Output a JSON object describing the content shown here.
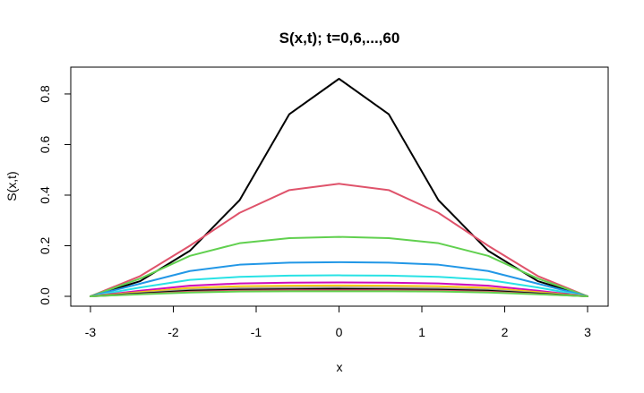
{
  "chart_data": {
    "type": "line",
    "title": "S(x,t); t=0,6,...,60",
    "xlabel": "x",
    "ylabel": "S(x,t)",
    "xlim": [
      -3.0,
      3.0
    ],
    "ylim": [
      0.0,
      0.86
    ],
    "x_ticks": [
      "-3",
      "-2",
      "-1",
      "0",
      "1",
      "2",
      "3"
    ],
    "y_ticks": [
      "0.0",
      "0.2",
      "0.4",
      "0.6",
      "0.8"
    ],
    "grid": false,
    "x": [
      -3.0,
      -2.4,
      -1.8,
      -1.2,
      -0.6,
      0.0,
      0.6,
      1.2,
      1.8,
      2.4,
      3.0
    ],
    "series": [
      {
        "color": "#000000",
        "values": [
          0.0,
          0.06,
          0.18,
          0.38,
          0.72,
          0.86,
          0.72,
          0.38,
          0.18,
          0.06,
          0.0
        ]
      },
      {
        "color": "#DF536B",
        "values": [
          0.0,
          0.08,
          0.2,
          0.33,
          0.42,
          0.445,
          0.42,
          0.33,
          0.2,
          0.08,
          0.0
        ]
      },
      {
        "color": "#61D04F",
        "values": [
          0.0,
          0.07,
          0.16,
          0.21,
          0.23,
          0.235,
          0.23,
          0.21,
          0.16,
          0.07,
          0.0
        ]
      },
      {
        "color": "#2297E6",
        "values": [
          0.0,
          0.05,
          0.1,
          0.125,
          0.133,
          0.135,
          0.133,
          0.125,
          0.1,
          0.05,
          0.0
        ]
      },
      {
        "color": "#28E2E5",
        "values": [
          0.0,
          0.035,
          0.065,
          0.077,
          0.082,
          0.083,
          0.082,
          0.077,
          0.065,
          0.035,
          0.0
        ]
      },
      {
        "color": "#CD0BBC",
        "values": [
          0.0,
          0.022,
          0.042,
          0.051,
          0.054,
          0.055,
          0.054,
          0.051,
          0.042,
          0.022,
          0.0
        ]
      },
      {
        "color": "#F5C710",
        "values": [
          0.0,
          0.017,
          0.033,
          0.04,
          0.042,
          0.043,
          0.042,
          0.04,
          0.033,
          0.017,
          0.0
        ]
      },
      {
        "color": "#9E9E9E",
        "values": [
          0.0,
          0.013,
          0.026,
          0.032,
          0.034,
          0.035,
          0.034,
          0.032,
          0.026,
          0.013,
          0.0
        ]
      },
      {
        "color": "#000000",
        "values": [
          0.0,
          0.011,
          0.022,
          0.026,
          0.028,
          0.029,
          0.028,
          0.026,
          0.022,
          0.011,
          0.0
        ]
      },
      {
        "color": "#DF536B",
        "values": [
          0.0,
          0.009,
          0.018,
          0.022,
          0.024,
          0.024,
          0.024,
          0.022,
          0.018,
          0.009,
          0.0
        ]
      },
      {
        "color": "#61D04F",
        "values": [
          0.0,
          0.008,
          0.015,
          0.019,
          0.02,
          0.02,
          0.02,
          0.019,
          0.015,
          0.008,
          0.0
        ]
      }
    ]
  }
}
